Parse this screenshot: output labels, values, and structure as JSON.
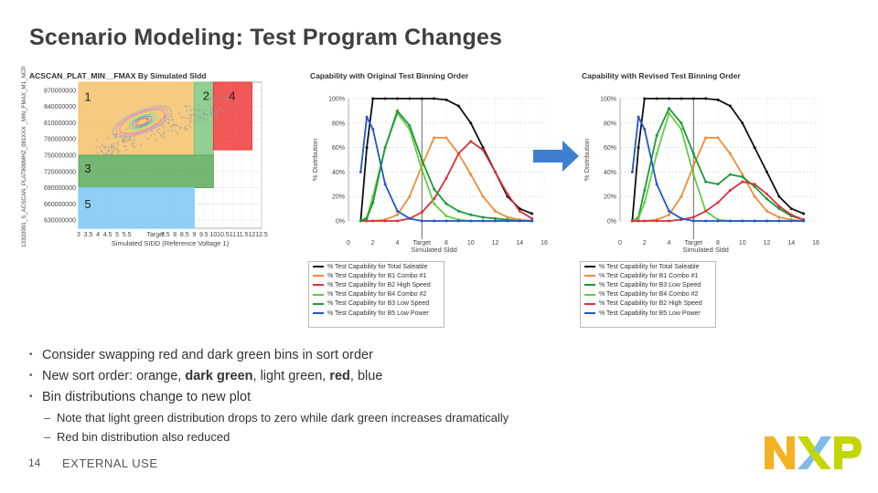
{
  "slide": {
    "title": "Scenario Modeling: Test Program Changes",
    "page_number": "14",
    "footer": "EXTERNAL USE",
    "logo_text": "NXP"
  },
  "bullets": [
    {
      "text": "Consider swapping red and dark green bins in sort order"
    },
    {
      "text": "New sort order: orange, dark green, light green, red, blue",
      "parts": [
        "New sort order: orange, ",
        "dark green",
        ", light green, ",
        "red",
        ", blue"
      ]
    },
    {
      "text": "Bin distributions change to new plot"
    }
  ],
  "sub_bullets": [
    "Note that light green distribution drops to zero while dark green increases dramatically",
    "Red bin distribution also reduced"
  ],
  "chart_data": [
    {
      "type": "scatter",
      "title": "ACSCAN_PLAT_MIN__FMAX By Simulated Sldd",
      "xlabel": "Simulated SIDD (Reference Voltage 1)",
      "ylabel": "13303001_S_ACSCAN_PLAT800MHZ_081XXX _MIN_FMAX_M1_NCP8",
      "x_ticks": [
        "3",
        "3.5",
        "4",
        "4.5",
        "5",
        "5.5",
        "Target",
        "7.5",
        "8",
        "8.5",
        "9",
        "9.5",
        "10",
        "10.5",
        "11",
        "11.5",
        "12",
        "12.5"
      ],
      "y_ticks": [
        "870000000",
        "840000000",
        "810000000",
        "780000000",
        "750000000",
        "720000000",
        "690000000",
        "660000000",
        "630000000"
      ],
      "xlim": [
        3,
        12.5
      ],
      "ylim": [
        615000000,
        885000000
      ],
      "zone_labels": [
        "1",
        "2",
        "4",
        "3",
        "5"
      ],
      "zones": [
        {
          "label": "1",
          "color": "#f5c26b",
          "x": [
            3,
            9
          ],
          "y": [
            750000000,
            885000000
          ]
        },
        {
          "label": "2",
          "color": "#7fc77f",
          "x": [
            9,
            10
          ],
          "y": [
            750000000,
            885000000
          ]
        },
        {
          "label": "4",
          "color": "#ee3b3b",
          "x": [
            10,
            12
          ],
          "y": [
            760000000,
            885000000
          ]
        },
        {
          "label": "3",
          "color": "#5aaa5a",
          "x": [
            3,
            10
          ],
          "y": [
            690000000,
            750000000
          ]
        },
        {
          "label": "5",
          "color": "#7dc8f2",
          "x": [
            3,
            9
          ],
          "y": [
            615000000,
            690000000
          ]
        }
      ]
    },
    {
      "type": "line",
      "title": "Capability with Original Test Binning Order",
      "xlabel": "Simulated Sldd",
      "ylabel": "% Distribution",
      "x_ticks": [
        "0",
        "2",
        "4",
        "Target",
        "8",
        "10",
        "12",
        "14",
        "16"
      ],
      "y_ticks": [
        "100%",
        "80%",
        "60%",
        "40%",
        "20%",
        "0%"
      ],
      "xlim": [
        0,
        16
      ],
      "ylim": [
        0,
        100
      ],
      "legend": [
        "% Test Capability for Total Saleable",
        "% Test Capability for B1 Combo #1",
        "% Test Capability for B2 High Speed",
        "% Test Capability for B4 Combo #2",
        "% Test Capability for B3 Low Speed",
        "% Test Capability for B5 Low Power"
      ],
      "x": [
        1,
        1.5,
        2,
        3,
        4,
        5,
        6,
        7,
        8,
        9,
        10,
        11,
        12,
        13,
        14,
        15
      ],
      "series": [
        {
          "name": "Total Saleable",
          "color": "#111111",
          "values": [
            0,
            60,
            100,
            100,
            100,
            100,
            100,
            100,
            99,
            94,
            80,
            60,
            40,
            20,
            10,
            6
          ]
        },
        {
          "name": "B1 Combo #1",
          "color": "#f08c3a",
          "values": [
            0,
            0,
            0,
            1,
            5,
            20,
            45,
            68,
            68,
            55,
            38,
            20,
            8,
            3,
            1,
            0
          ]
        },
        {
          "name": "B2 High Speed",
          "color": "#d8323c",
          "values": [
            0,
            0,
            0,
            0,
            0,
            2,
            7,
            18,
            35,
            55,
            65,
            58,
            40,
            22,
            8,
            2
          ]
        },
        {
          "name": "B4 Combo #2",
          "color": "#66cc44",
          "values": [
            0,
            3,
            20,
            60,
            88,
            75,
            42,
            14,
            4,
            1,
            0,
            0,
            0,
            0,
            0,
            0
          ]
        },
        {
          "name": "B3 Low Speed",
          "color": "#1a9a3a",
          "values": [
            0,
            2,
            15,
            60,
            90,
            78,
            50,
            26,
            14,
            8,
            5,
            3,
            2,
            1,
            0,
            0
          ]
        },
        {
          "name": "B5 Low Power",
          "color": "#2456c8",
          "values": [
            40,
            85,
            75,
            30,
            8,
            2,
            0,
            0,
            0,
            0,
            0,
            0,
            0,
            0,
            0,
            0
          ]
        }
      ]
    },
    {
      "type": "line",
      "title": "Capability with Revised Test Binning Order",
      "xlabel": "Simulated Sldd",
      "ylabel": "% Distribution",
      "x_ticks": [
        "0",
        "2",
        "4",
        "Target",
        "8",
        "10",
        "12",
        "14",
        "16"
      ],
      "y_ticks": [
        "100%",
        "80%",
        "60%",
        "40%",
        "20%",
        "0%"
      ],
      "xlim": [
        0,
        16
      ],
      "ylim": [
        0,
        100
      ],
      "legend": [
        "% Test Capability for Total Saleable",
        "% Test Capability for B1 Combo #1",
        "% Test Capability for B3 Low Speed",
        "% Test Capability for B4 Combo #2",
        "% Test Capability for B2 High Speed",
        "% Test Capability for B5 Low Power"
      ],
      "x": [
        1,
        1.5,
        2,
        3,
        4,
        5,
        6,
        7,
        8,
        9,
        10,
        11,
        12,
        13,
        14,
        15
      ],
      "series": [
        {
          "name": "Total Saleable",
          "color": "#111111",
          "values": [
            0,
            60,
            100,
            100,
            100,
            100,
            100,
            100,
            99,
            94,
            80,
            60,
            40,
            20,
            10,
            6
          ]
        },
        {
          "name": "B1 Combo #1",
          "color": "#f08c3a",
          "values": [
            0,
            0,
            0,
            1,
            5,
            20,
            45,
            68,
            68,
            55,
            38,
            20,
            8,
            3,
            1,
            0
          ]
        },
        {
          "name": "B3 Low Speed",
          "color": "#1a9a3a",
          "values": [
            0,
            3,
            25,
            70,
            92,
            80,
            55,
            32,
            30,
            38,
            36,
            28,
            18,
            10,
            4,
            1
          ]
        },
        {
          "name": "B4 Combo #2",
          "color": "#66cc44",
          "values": [
            0,
            2,
            15,
            55,
            88,
            75,
            38,
            8,
            1,
            0,
            0,
            0,
            0,
            0,
            0,
            0
          ]
        },
        {
          "name": "B2 High Speed",
          "color": "#d8323c",
          "values": [
            0,
            0,
            0,
            0,
            0,
            1,
            3,
            8,
            15,
            25,
            32,
            30,
            22,
            12,
            5,
            1
          ]
        },
        {
          "name": "B5 Low Power",
          "color": "#2456c8",
          "values": [
            40,
            85,
            75,
            30,
            8,
            2,
            0,
            0,
            0,
            0,
            0,
            0,
            0,
            0,
            0,
            0
          ]
        }
      ]
    }
  ]
}
